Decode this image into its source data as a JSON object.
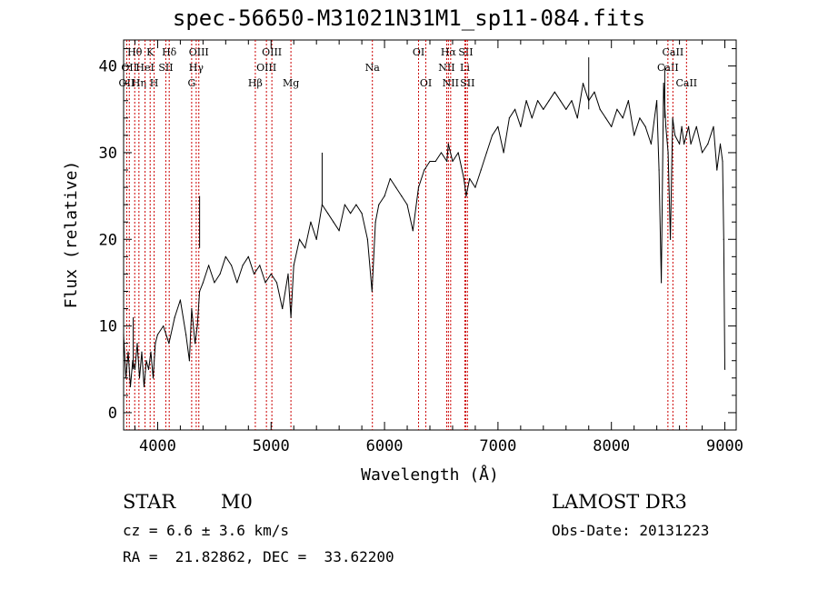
{
  "header": {
    "title": "spec-56650-M31021N31M1_sp11-084.fits"
  },
  "info": {
    "class": "STAR",
    "subclass": "M0",
    "survey": "LAMOST DR3",
    "cz": "cz = 6.6 ± 3.6 km/s",
    "obs_date": "Obs-Date: 20131223",
    "coords": "RA =  21.82862, DEC =  33.62200"
  },
  "chart_data": {
    "type": "line",
    "xlabel": "Wavelength (Å)",
    "ylabel": "Flux (relative)",
    "xlim": [
      3700,
      9100
    ],
    "ylim": [
      -2,
      43
    ],
    "xticks": [
      4000,
      5000,
      6000,
      7000,
      8000,
      9000
    ],
    "yticks": [
      0,
      10,
      20,
      30,
      40
    ],
    "grid": false,
    "line_color": "#000000",
    "marker_color": "#cc0000",
    "spectrum": {
      "x": [
        3700,
        3720,
        3740,
        3760,
        3780,
        3800,
        3820,
        3840,
        3860,
        3880,
        3900,
        3920,
        3940,
        3960,
        3980,
        4000,
        4050,
        4100,
        4150,
        4200,
        4250,
        4280,
        4300,
        4330,
        4350,
        4370,
        4400,
        4450,
        4500,
        4550,
        4600,
        4650,
        4700,
        4750,
        4800,
        4850,
        4900,
        4950,
        5000,
        5050,
        5100,
        5150,
        5175,
        5200,
        5250,
        5300,
        5350,
        5400,
        5450,
        5500,
        5550,
        5600,
        5650,
        5700,
        5750,
        5800,
        5850,
        5890,
        5920,
        5950,
        6000,
        6050,
        6100,
        6150,
        6200,
        6250,
        6300,
        6350,
        6400,
        6450,
        6500,
        6550,
        6563,
        6600,
        6650,
        6700,
        6720,
        6750,
        6800,
        6850,
        6900,
        6950,
        7000,
        7050,
        7100,
        7150,
        7200,
        7250,
        7300,
        7350,
        7400,
        7450,
        7500,
        7550,
        7600,
        7650,
        7700,
        7750,
        7800,
        7850,
        7900,
        7950,
        8000,
        8050,
        8100,
        8150,
        8200,
        8250,
        8300,
        8350,
        8400,
        8420,
        8440,
        8460,
        8480,
        8500,
        8520,
        8540,
        8560,
        8600,
        8620,
        8640,
        8660,
        8680,
        8700,
        8750,
        8800,
        8850,
        8900,
        8930,
        8960,
        8980,
        8990,
        9000
      ],
      "y": [
        9,
        4,
        7,
        3,
        6,
        5,
        8,
        4,
        7,
        3,
        6,
        5,
        7,
        4,
        8,
        9,
        10,
        8,
        11,
        13,
        9,
        6,
        12,
        8,
        10,
        14,
        15,
        17,
        15,
        16,
        18,
        17,
        15,
        17,
        18,
        16,
        17,
        15,
        16,
        15,
        12,
        16,
        11,
        17,
        20,
        19,
        22,
        20,
        24,
        23,
        22,
        21,
        24,
        23,
        24,
        23,
        20,
        14,
        22,
        24,
        25,
        27,
        26,
        25,
        24,
        21,
        26,
        28,
        29,
        29,
        30,
        29,
        31,
        29,
        30,
        27,
        25,
        27,
        26,
        28,
        30,
        32,
        33,
        30,
        34,
        35,
        33,
        36,
        34,
        36,
        35,
        36,
        37,
        36,
        35,
        36,
        34,
        38,
        36,
        37,
        35,
        34,
        33,
        35,
        34,
        36,
        32,
        34,
        33,
        31,
        36,
        28,
        15,
        38,
        33,
        30,
        20,
        34,
        32,
        31,
        33,
        31,
        32,
        33,
        31,
        33,
        30,
        31,
        33,
        28,
        31,
        29,
        20,
        5
      ]
    },
    "peak_markers": [
      {
        "x": 3785,
        "y": 11,
        "label": ""
      },
      {
        "x": 4370,
        "y": 25,
        "label": ""
      },
      {
        "x": 5450,
        "y": 30,
        "label": ""
      },
      {
        "x": 7800,
        "y": 41,
        "label": ""
      },
      {
        "x": 8470,
        "y": 40,
        "label": ""
      }
    ],
    "spectral_lines": [
      {
        "x": 3727,
        "label": "OII",
        "row": 2
      },
      {
        "x": 3750,
        "label": "OII",
        "row": 1
      },
      {
        "x": 3798,
        "label": "Hθ",
        "row": 0
      },
      {
        "x": 3835,
        "label": "Hη",
        "row": 2
      },
      {
        "x": 3889,
        "label": "HeI",
        "row": 1
      },
      {
        "x": 3934,
        "label": "K",
        "row": 0
      },
      {
        "x": 3969,
        "label": "H",
        "row": 2
      },
      {
        "x": 4072,
        "label": "SII",
        "row": 1
      },
      {
        "x": 4102,
        "label": "Hδ",
        "row": 0
      },
      {
        "x": 4300,
        "label": "G",
        "row": 2
      },
      {
        "x": 4340,
        "label": "Hγ",
        "row": 1
      },
      {
        "x": 4363,
        "label": "OIII",
        "row": 0
      },
      {
        "x": 4861,
        "label": "Hβ",
        "row": 2
      },
      {
        "x": 4959,
        "label": "OIII",
        "row": 1
      },
      {
        "x": 5007,
        "label": "OIII",
        "row": 0
      },
      {
        "x": 5175,
        "label": "Mg",
        "row": 2
      },
      {
        "x": 5893,
        "label": "Na",
        "row": 1
      },
      {
        "x": 6300,
        "label": "OI",
        "row": 0
      },
      {
        "x": 6364,
        "label": "OI",
        "row": 2
      },
      {
        "x": 6548,
        "label": "NII",
        "row": 1
      },
      {
        "x": 6563,
        "label": "Hα",
        "row": 0
      },
      {
        "x": 6583,
        "label": "NII",
        "row": 2
      },
      {
        "x": 6708,
        "label": "Li",
        "row": 1
      },
      {
        "x": 6716,
        "label": "SII",
        "row": 0
      },
      {
        "x": 6731,
        "label": "SII",
        "row": 2
      },
      {
        "x": 8498,
        "label": "CaII",
        "row": 1
      },
      {
        "x": 8542,
        "label": "CaII",
        "row": 0
      },
      {
        "x": 8662,
        "label": "CaII",
        "row": 2
      }
    ]
  }
}
